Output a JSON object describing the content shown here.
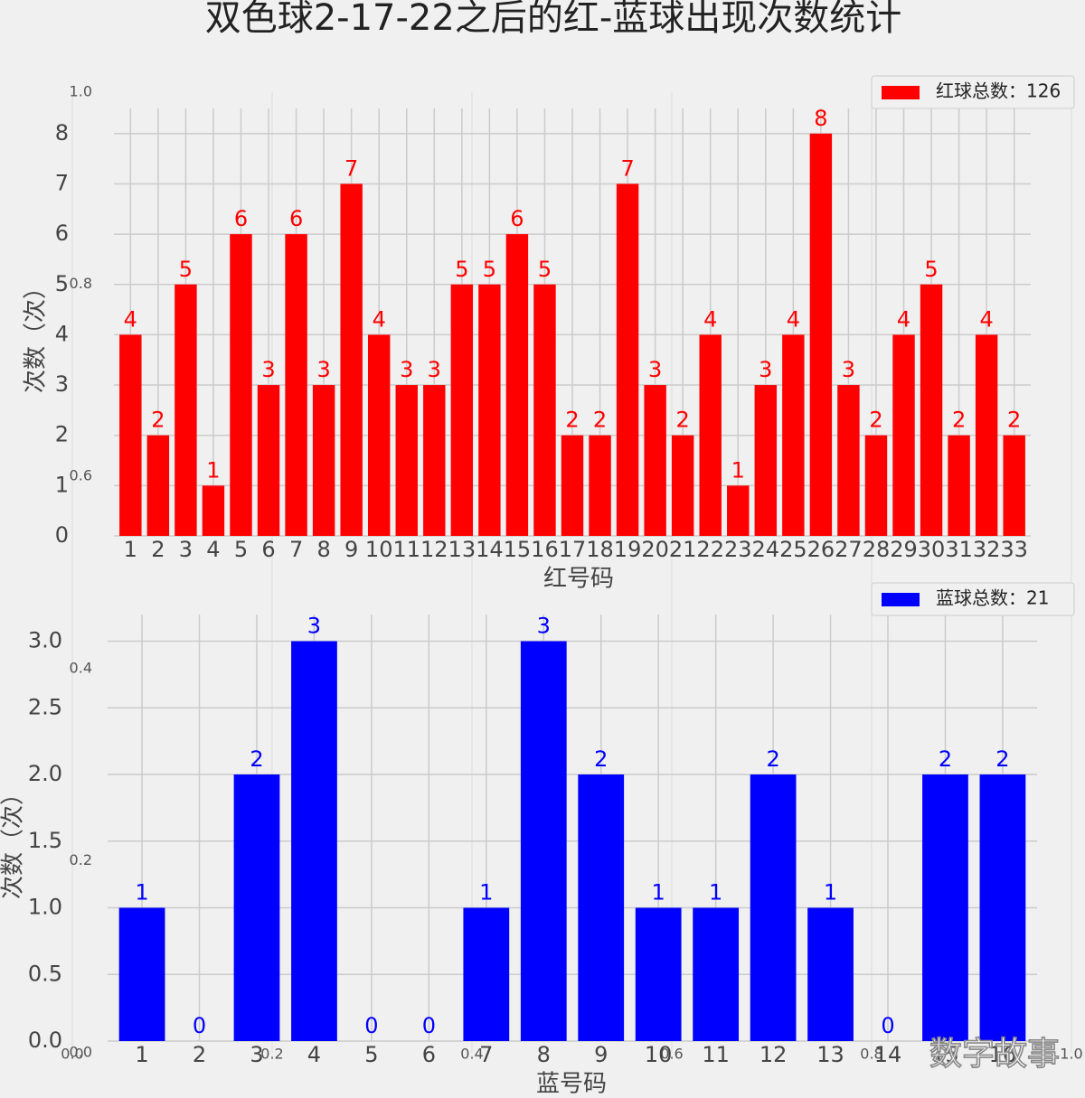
{
  "chart_data": [
    {
      "type": "axes",
      "xlim": [
        0,
        1
      ],
      "ylim": [
        0,
        1
      ],
      "xticks": [
        {
          "value": 0,
          "label": "0.0"
        },
        {
          "value": 0.2,
          "label": "0.2"
        },
        {
          "value": 0.4,
          "label": "0.4"
        },
        {
          "value": 0.6,
          "label": "0.6"
        },
        {
          "value": 0.8,
          "label": "0.8"
        },
        {
          "value": 1,
          "label": "1.0"
        }
      ],
      "yticks": [
        {
          "value": 0,
          "label": "0.0"
        },
        {
          "value": 0.2,
          "label": "0.2"
        },
        {
          "value": 0.4,
          "label": "0.4"
        },
        {
          "value": 0.6,
          "label": "0.6"
        },
        {
          "value": 0.8,
          "label": "0.8"
        },
        {
          "value": 1,
          "label": "1.0"
        }
      ],
      "grid": true,
      "title": "双色球2-17-22之后的红-蓝球出现次数统计",
      "watermark": "数字故事"
    },
    {
      "type": "bar",
      "xlabel": "红号码",
      "ylabel": "次数（次）",
      "legend": "upper right",
      "grid": true,
      "categories": [
        "1",
        "2",
        "3",
        "4",
        "5",
        "6",
        "7",
        "8",
        "9",
        "10",
        "11",
        "12",
        "13",
        "14",
        "15",
        "16",
        "17",
        "18",
        "19",
        "20",
        "21",
        "22",
        "23",
        "24",
        "25",
        "26",
        "27",
        "28",
        "29",
        "30",
        "31",
        "32",
        "33"
      ],
      "series": [
        {
          "name": "红球总数：126",
          "color": "#ff0000",
          "values": [
            4,
            2,
            5,
            1,
            6,
            3,
            6,
            3,
            7,
            4,
            3,
            3,
            5,
            5,
            6,
            5,
            2,
            2,
            7,
            3,
            2,
            4,
            1,
            3,
            4,
            8,
            3,
            2,
            4,
            5,
            2,
            4,
            2
          ]
        }
      ],
      "ylim": [
        0,
        8.5
      ],
      "yticks": [
        0,
        1,
        2,
        3,
        4,
        5,
        6,
        7,
        8
      ]
    },
    {
      "type": "bar",
      "xlabel": "蓝号码",
      "ylabel": "次数（次）",
      "legend": "upper right",
      "grid": true,
      "categories": [
        "1",
        "2",
        "3",
        "4",
        "5",
        "6",
        "7",
        "8",
        "9",
        "10",
        "11",
        "12",
        "13",
        "14",
        "15",
        "16"
      ],
      "series": [
        {
          "name": "蓝球总数：21",
          "color": "#0000ff",
          "values": [
            1,
            0,
            2,
            3,
            0,
            0,
            1,
            3,
            2,
            1,
            1,
            2,
            1,
            0,
            2,
            2
          ]
        }
      ],
      "ylim": [
        0,
        3.2
      ],
      "yticks": [
        {
          "value": 0,
          "label": "0.0"
        },
        0.5,
        {
          "value": 1,
          "label": "1.0"
        },
        1.5,
        {
          "value": 2,
          "label": "2.0"
        },
        2.5,
        {
          "value": 3,
          "label": "3.0"
        }
      ]
    }
  ]
}
